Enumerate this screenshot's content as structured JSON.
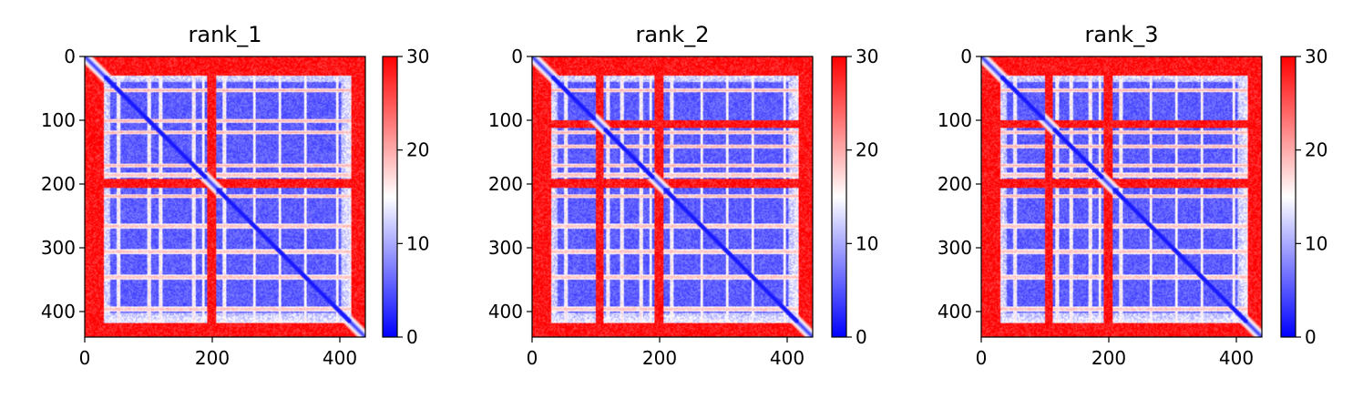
{
  "chart_data": [
    {
      "type": "heatmap",
      "title": "rank_1",
      "n": 440,
      "xticks": [
        0,
        200,
        400
      ],
      "yticks": [
        0,
        100,
        200,
        300,
        400
      ],
      "xlim": [
        0,
        440
      ],
      "ylim": [
        440,
        0
      ],
      "colorbar": {
        "min": 0,
        "max": 30,
        "ticks": [
          0,
          10,
          20,
          30
        ],
        "colormap": "bwr"
      },
      "red_rows": [
        [
          0,
          30
        ],
        [
          192,
          205
        ],
        [
          418,
          440
        ]
      ],
      "light_bands": [
        52,
        100,
        118,
        170,
        185,
        218,
        265,
        305,
        345,
        395
      ],
      "block_edges": [
        30,
        40,
        80,
        120,
        175,
        200,
        230,
        300,
        350,
        420
      ]
    },
    {
      "type": "heatmap",
      "title": "rank_2",
      "n": 440,
      "xticks": [
        0,
        200,
        400
      ],
      "yticks": [
        0,
        100,
        200,
        300,
        400
      ],
      "xlim": [
        0,
        440
      ],
      "ylim": [
        440,
        0
      ],
      "colorbar": {
        "min": 0,
        "max": 30,
        "ticks": [
          0,
          10,
          20,
          30
        ],
        "colormap": "bwr"
      },
      "red_rows": [
        [
          0,
          30
        ],
        [
          100,
          112
        ],
        [
          192,
          205
        ],
        [
          418,
          440
        ]
      ],
      "light_bands": [
        52,
        118,
        140,
        170,
        185,
        218,
        265,
        305,
        345,
        395
      ],
      "block_edges": [
        30,
        40,
        80,
        120,
        175,
        200,
        230,
        300,
        350,
        420
      ]
    },
    {
      "type": "heatmap",
      "title": "rank_3",
      "n": 440,
      "xticks": [
        0,
        200,
        400
      ],
      "yticks": [
        0,
        100,
        200,
        300,
        400
      ],
      "xlim": [
        0,
        440
      ],
      "ylim": [
        440,
        0
      ],
      "colorbar": {
        "min": 0,
        "max": 30,
        "ticks": [
          0,
          10,
          20,
          30
        ],
        "colormap": "bwr"
      },
      "red_rows": [
        [
          0,
          30
        ],
        [
          100,
          112
        ],
        [
          192,
          205
        ],
        [
          418,
          440
        ]
      ],
      "light_bands": [
        52,
        118,
        140,
        170,
        185,
        218,
        265,
        305,
        345,
        395
      ],
      "block_edges": [
        30,
        40,
        80,
        120,
        175,
        200,
        230,
        300,
        350,
        420
      ]
    }
  ],
  "colors": {
    "low": "#0000ff",
    "mid": "#ffffff",
    "high": "#ff0000"
  }
}
